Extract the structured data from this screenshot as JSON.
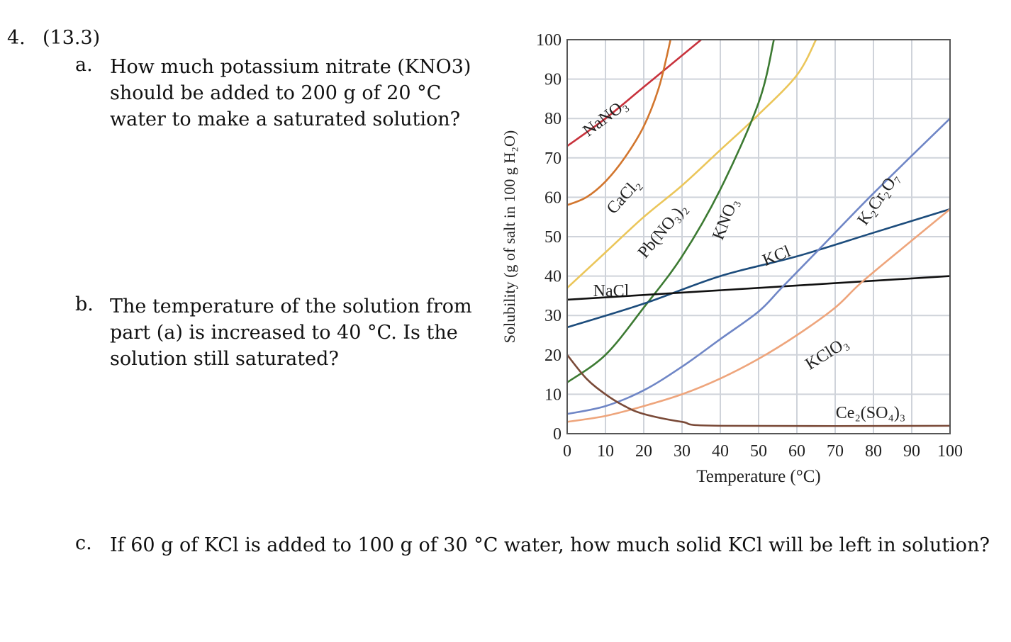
{
  "question": {
    "number": "4.",
    "section": "(13.3)",
    "parts": [
      {
        "letter": "a.",
        "lines": [
          "How much potassium nitrate (KNO3)",
          "should be added to 200 g of 20 °C",
          "water to make a saturated solution?"
        ]
      },
      {
        "letter": "b.",
        "lines": [
          "The temperature of the solution from",
          "part (a) is increased to 40 °C. Is the",
          "solution still saturated?"
        ]
      },
      {
        "letter": "c.",
        "lines": [
          "If 60 g of KCl is added to 100 g of 30 °C water, how much solid KCl will be left in solution?"
        ]
      }
    ]
  },
  "chart_data": {
    "type": "line",
    "title": "",
    "xlabel": "Temperature (°C)",
    "ylabel": "Solubility (g of salt in 100 g H₂O)",
    "xlim": [
      0,
      100
    ],
    "ylim": [
      0,
      100
    ],
    "xticks": [
      "0",
      "10",
      "20",
      "30",
      "40",
      "50",
      "60",
      "70",
      "80",
      "90",
      "100"
    ],
    "yticks": [
      "0",
      "10",
      "20",
      "30",
      "40",
      "50",
      "60",
      "70",
      "80",
      "90",
      "100"
    ],
    "grid": true,
    "series": [
      {
        "name": "NaNO₃",
        "color": "#c8323c",
        "points": [
          [
            0,
            73
          ],
          [
            10,
            80
          ],
          [
            20,
            88
          ],
          [
            30,
            96
          ],
          [
            35,
            100
          ]
        ]
      },
      {
        "name": "CaCl₂",
        "color": "#d2762e",
        "points": [
          [
            0,
            58
          ],
          [
            5,
            60
          ],
          [
            10,
            64
          ],
          [
            15,
            70
          ],
          [
            20,
            78
          ],
          [
            24,
            88
          ],
          [
            27,
            100
          ]
        ]
      },
      {
        "name": "Pb(NO₃)₂",
        "color": "#ebc65a",
        "points": [
          [
            0,
            37
          ],
          [
            10,
            46
          ],
          [
            20,
            55
          ],
          [
            30,
            63
          ],
          [
            40,
            72
          ],
          [
            50,
            81
          ],
          [
            60,
            91
          ],
          [
            65,
            100
          ]
        ]
      },
      {
        "name": "KNO₃",
        "color": "#3c7a32",
        "points": [
          [
            0,
            13
          ],
          [
            10,
            20
          ],
          [
            20,
            32
          ],
          [
            30,
            45
          ],
          [
            40,
            62
          ],
          [
            50,
            84
          ],
          [
            54,
            100
          ]
        ]
      },
      {
        "name": "KCl",
        "color": "#1c4c7c",
        "points": [
          [
            0,
            27
          ],
          [
            20,
            33
          ],
          [
            40,
            40
          ],
          [
            60,
            45
          ],
          [
            80,
            51
          ],
          [
            100,
            57
          ]
        ]
      },
      {
        "name": "NaCl",
        "color": "#111111",
        "points": [
          [
            0,
            34
          ],
          [
            50,
            37
          ],
          [
            100,
            40
          ]
        ]
      },
      {
        "name": "K₂Cr₂O₇",
        "color": "#6f86c6",
        "points": [
          [
            0,
            5
          ],
          [
            10,
            7
          ],
          [
            20,
            11
          ],
          [
            30,
            17
          ],
          [
            40,
            24
          ],
          [
            50,
            31
          ],
          [
            56,
            37
          ],
          [
            66,
            47
          ],
          [
            80,
            61
          ],
          [
            100,
            80
          ]
        ]
      },
      {
        "name": "KClO₃",
        "color": "#eea57c",
        "points": [
          [
            0,
            3
          ],
          [
            10,
            4.5
          ],
          [
            20,
            7
          ],
          [
            30,
            10
          ],
          [
            40,
            14
          ],
          [
            50,
            19
          ],
          [
            60,
            25
          ],
          [
            70,
            32
          ],
          [
            77,
            38.5
          ],
          [
            90,
            49
          ],
          [
            100,
            57
          ]
        ]
      },
      {
        "name": "Ce₂(SO₄)₃",
        "color": "#7a4a38",
        "points": [
          [
            0,
            20
          ],
          [
            5,
            14
          ],
          [
            10,
            10
          ],
          [
            15,
            7
          ],
          [
            20,
            5
          ],
          [
            30,
            3
          ],
          [
            40,
            2
          ],
          [
            100,
            2
          ]
        ]
      }
    ]
  }
}
